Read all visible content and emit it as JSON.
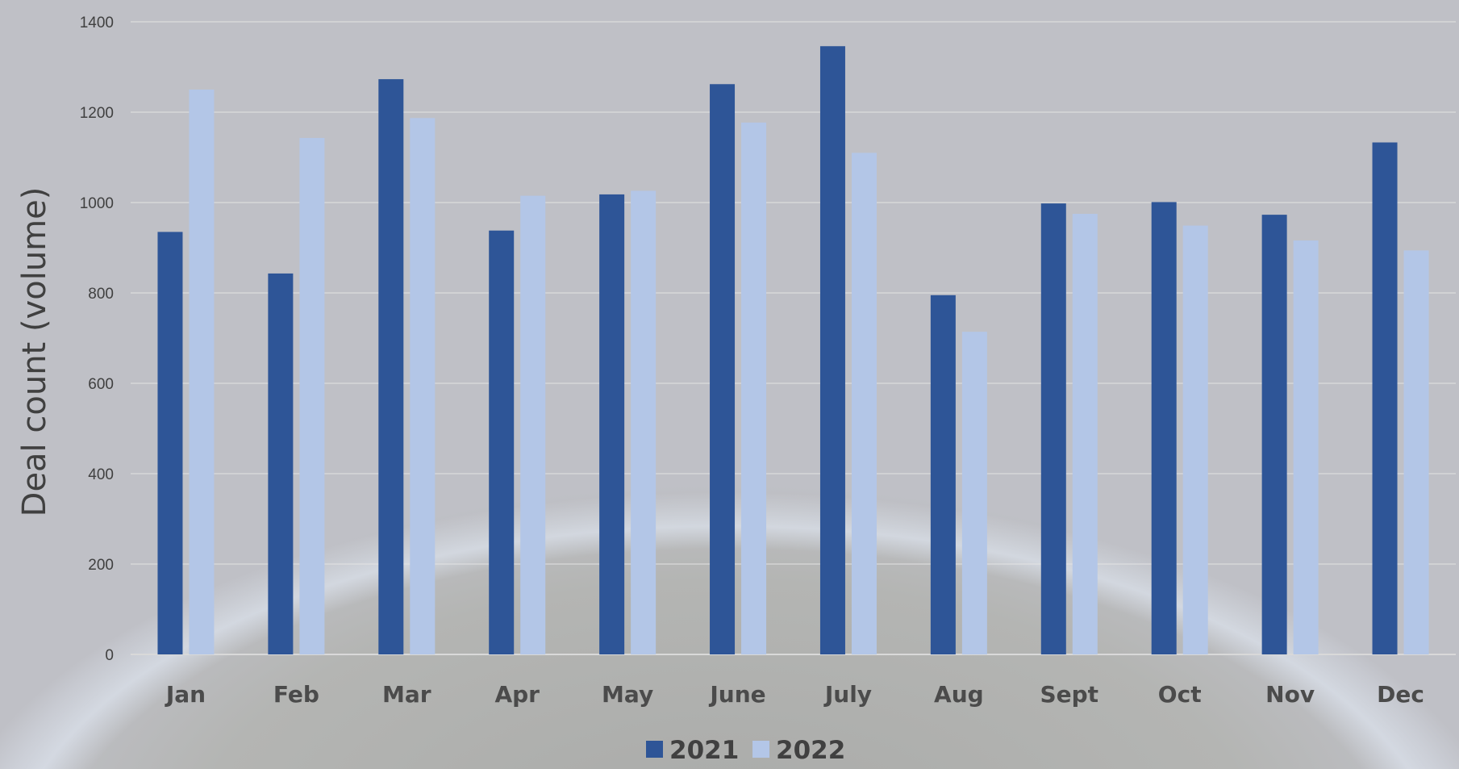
{
  "chart_data": {
    "type": "bar",
    "title": "",
    "xlabel": "",
    "ylabel": "Deal count (volume)",
    "ylim": [
      0,
      1400
    ],
    "yticks": [
      0,
      200,
      400,
      600,
      800,
      1000,
      1200,
      1400
    ],
    "grid": true,
    "legend_position": "bottom",
    "categories": [
      "Jan",
      "Feb",
      "Mar",
      "Apr",
      "May",
      "June",
      "July",
      "Aug",
      "Sept",
      "Oct",
      "Nov",
      "Dec"
    ],
    "series": [
      {
        "name": "2021",
        "color": "#2e5597",
        "values": [
          935,
          843,
          1273,
          938,
          1018,
          1262,
          1346,
          795,
          998,
          1001,
          973,
          1133
        ]
      },
      {
        "name": "2022",
        "color": "#b3c6e7",
        "values": [
          1250,
          1143,
          1187,
          1015,
          1026,
          1177,
          1110,
          714,
          975,
          949,
          916,
          894
        ]
      }
    ]
  }
}
